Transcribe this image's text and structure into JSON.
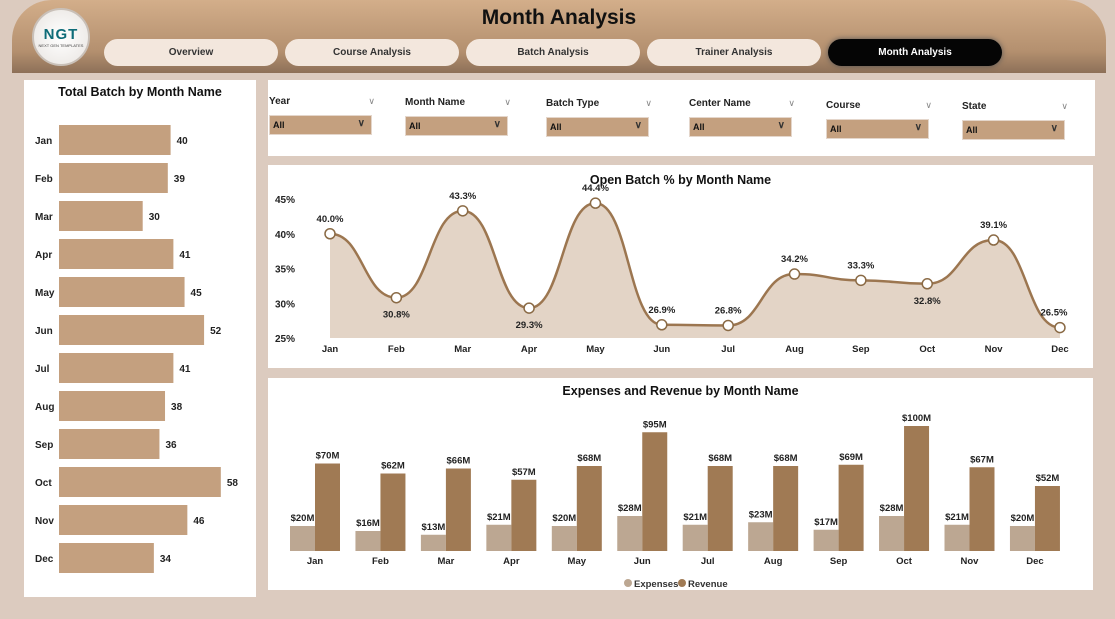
{
  "header": {
    "title": "Month Analysis",
    "logo_text": "NGT",
    "logo_sub": "NEXT GEN TEMPLATES"
  },
  "nav": [
    {
      "label": "Overview"
    },
    {
      "label": "Course Analysis"
    },
    {
      "label": "Batch Analysis"
    },
    {
      "label": "Trainer Analysis"
    },
    {
      "label": "Month Analysis",
      "active": true
    }
  ],
  "filters": [
    {
      "label": "Year",
      "value": "All"
    },
    {
      "label": "Month Name",
      "value": "All"
    },
    {
      "label": "Batch Type",
      "value": "All"
    },
    {
      "label": "Center Name",
      "value": "All"
    },
    {
      "label": "Course",
      "value": "All"
    },
    {
      "label": "State",
      "value": "All"
    }
  ],
  "colors": {
    "bar": "#c4a07f",
    "line": "#9c7650",
    "area": "#e3d4c6",
    "expenses": "#bca792",
    "revenue": "#a07a54"
  },
  "chart_data": [
    {
      "type": "bar",
      "orientation": "horizontal",
      "title": "Total Batch by Month Name",
      "categories": [
        "Jan",
        "Feb",
        "Mar",
        "Apr",
        "May",
        "Jun",
        "Jul",
        "Aug",
        "Sep",
        "Oct",
        "Nov",
        "Dec"
      ],
      "values": [
        40,
        39,
        30,
        41,
        45,
        52,
        41,
        38,
        36,
        58,
        46,
        34
      ]
    },
    {
      "type": "area",
      "title": "Open Batch % by Month Name",
      "categories": [
        "Jan",
        "Feb",
        "Mar",
        "Apr",
        "May",
        "Jun",
        "Jul",
        "Aug",
        "Sep",
        "Oct",
        "Nov",
        "Dec"
      ],
      "values": [
        40.0,
        30.8,
        43.3,
        29.3,
        44.4,
        26.9,
        26.8,
        34.2,
        33.3,
        32.8,
        39.1,
        26.5
      ],
      "ylim": [
        25,
        45
      ],
      "yticks": [
        "25%",
        "30%",
        "35%",
        "40%",
        "45%"
      ]
    },
    {
      "type": "bar",
      "title": "Expenses and Revenue by Month Name",
      "categories": [
        "Jan",
        "Feb",
        "Mar",
        "Apr",
        "May",
        "Jun",
        "Jul",
        "Aug",
        "Sep",
        "Oct",
        "Nov",
        "Dec"
      ],
      "series": [
        {
          "name": "Expenses",
          "values": [
            20,
            16,
            13,
            21,
            20,
            28,
            21,
            23,
            17,
            28,
            21,
            20
          ]
        },
        {
          "name": "Revenue",
          "values": [
            70,
            62,
            66,
            57,
            68,
            95,
            68,
            68,
            69,
            100,
            67,
            52
          ]
        }
      ],
      "unit": "M",
      "legend": "bottom-center"
    }
  ]
}
